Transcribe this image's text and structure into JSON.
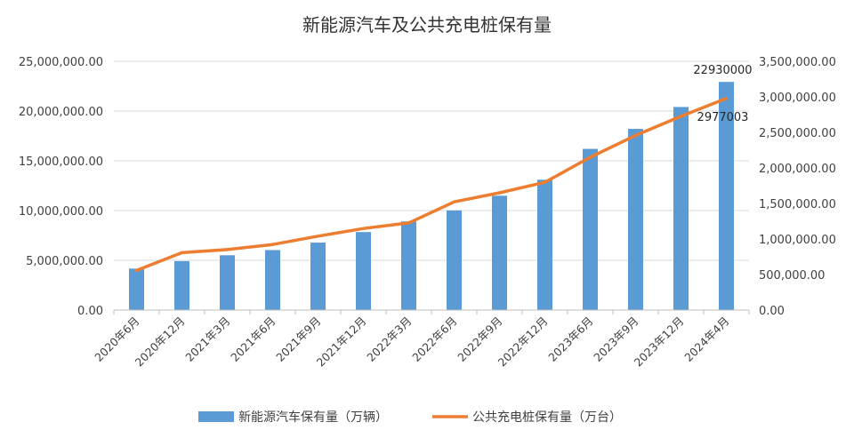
{
  "chart_data": {
    "type": "bar",
    "title": "新能源汽车及公共充电桩保有量",
    "categories": [
      "2020年6月",
      "2020年12月",
      "2021年3月",
      "2021年6月",
      "2021年9月",
      "2021年12月",
      "2022年3月",
      "2022年6月",
      "2022年9月",
      "2022年12月",
      "2023年6月",
      "2023年9月",
      "2023年12月",
      "2024年4月"
    ],
    "y_left": {
      "min": 0,
      "max": 25000000,
      "step": 5000000,
      "tick_labels": [
        "0.00",
        "5,000,000.00",
        "10,000,000.00",
        "15,000,000.00",
        "20,000,000.00",
        "25,000,000.00"
      ]
    },
    "y_right": {
      "min": 0,
      "max": 3500000,
      "step": 500000,
      "tick_labels": [
        "0.00",
        "500,000.00",
        "1,000,000.00",
        "1,500,000.00",
        "2,000,000.00",
        "2,500,000.00",
        "3,000,000.00",
        "3,500,000.00"
      ]
    },
    "series": [
      {
        "name": "新能源汽车保有量（万辆）",
        "type": "bar",
        "axis": "left",
        "color": "#5b9bd5",
        "values": [
          4170000,
          4920000,
          5510000,
          6030000,
          6780000,
          7840000,
          8910000,
          10010000,
          11490000,
          13100000,
          16200000,
          18210000,
          20410000,
          22930000
        ]
      },
      {
        "name": "公共充电桩保有量（万台）",
        "type": "line",
        "axis": "right",
        "color": "#ed7d31",
        "values": [
          558000,
          808000,
          851000,
          923000,
          1040000,
          1147000,
          1226000,
          1522000,
          1650000,
          1797000,
          2150000,
          2457000,
          2726000,
          2977003
        ]
      }
    ],
    "data_labels": [
      {
        "series": 0,
        "index": 13,
        "text": "22930000"
      },
      {
        "series": 1,
        "index": 13,
        "text": "2977003"
      }
    ],
    "legend_position": "bottom",
    "grid": true
  }
}
